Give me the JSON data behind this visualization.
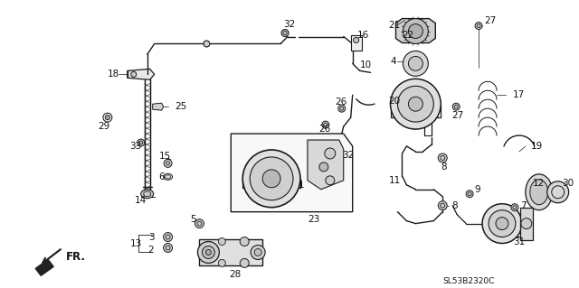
{
  "bg_color": "#ffffff",
  "fig_width": 6.4,
  "fig_height": 3.19,
  "dpi": 100,
  "diagram_code": "SL53B2320C",
  "line_color": "#1a1a1a",
  "text_color": "#111111",
  "font_size": 7.5
}
